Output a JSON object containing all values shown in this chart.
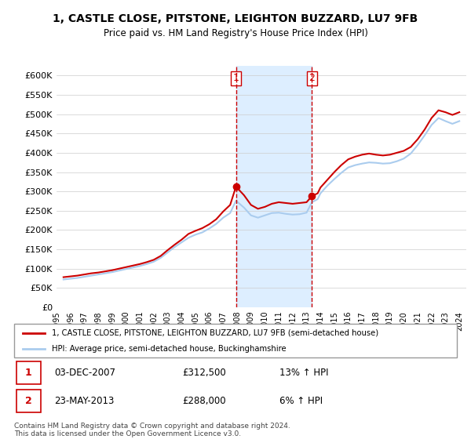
{
  "title": "1, CASTLE CLOSE, PITSTONE, LEIGHTON BUZZARD, LU7 9FB",
  "subtitle": "Price paid vs. HM Land Registry's House Price Index (HPI)",
  "legend_line1": "1, CASTLE CLOSE, PITSTONE, LEIGHTON BUZZARD, LU7 9FB (semi-detached house)",
  "legend_line2": "HPI: Average price, semi-detached house, Buckinghamshire",
  "annotation1_date": "03-DEC-2007",
  "annotation1_price": "£312,500",
  "annotation1_hpi": "13% ↑ HPI",
  "annotation2_date": "23-MAY-2013",
  "annotation2_price": "£288,000",
  "annotation2_hpi": "6% ↑ HPI",
  "footnote": "Contains HM Land Registry data © Crown copyright and database right 2024.\nThis data is licensed under the Open Government Licence v3.0.",
  "property_color": "#cc0000",
  "hpi_color": "#aaccee",
  "vline_color": "#cc0000",
  "highlight_color": "#ddeeff",
  "ylim": [
    0,
    625000
  ],
  "yticks": [
    0,
    50000,
    100000,
    150000,
    200000,
    250000,
    300000,
    350000,
    400000,
    450000,
    500000,
    550000,
    600000
  ],
  "marker1_x": 2007.92,
  "marker1_y": 312500,
  "marker2_x": 2013.39,
  "marker2_y": 288000,
  "vline1_x": 2007.92,
  "vline2_x": 2013.39,
  "highlight_x1": 2007.92,
  "highlight_x2": 2013.39,
  "property_data": [
    [
      1995.5,
      78000
    ],
    [
      1996.0,
      80000
    ],
    [
      1996.5,
      82000
    ],
    [
      1997.0,
      85000
    ],
    [
      1997.5,
      88000
    ],
    [
      1998.0,
      90000
    ],
    [
      1998.5,
      93000
    ],
    [
      1999.0,
      96000
    ],
    [
      1999.5,
      100000
    ],
    [
      2000.0,
      104000
    ],
    [
      2000.5,
      108000
    ],
    [
      2001.0,
      112000
    ],
    [
      2001.5,
      117000
    ],
    [
      2002.0,
      123000
    ],
    [
      2002.5,
      133000
    ],
    [
      2003.0,
      148000
    ],
    [
      2003.5,
      162000
    ],
    [
      2004.0,
      175000
    ],
    [
      2004.5,
      190000
    ],
    [
      2005.0,
      198000
    ],
    [
      2005.5,
      205000
    ],
    [
      2006.0,
      215000
    ],
    [
      2006.5,
      228000
    ],
    [
      2007.0,
      248000
    ],
    [
      2007.5,
      265000
    ],
    [
      2007.92,
      312500
    ],
    [
      2008.5,
      290000
    ],
    [
      2009.0,
      265000
    ],
    [
      2009.5,
      255000
    ],
    [
      2010.0,
      260000
    ],
    [
      2010.5,
      268000
    ],
    [
      2011.0,
      272000
    ],
    [
      2011.5,
      270000
    ],
    [
      2012.0,
      268000
    ],
    [
      2012.5,
      270000
    ],
    [
      2013.0,
      272000
    ],
    [
      2013.39,
      288000
    ],
    [
      2013.8,
      295000
    ],
    [
      2014.0,
      310000
    ],
    [
      2014.5,
      330000
    ],
    [
      2015.0,
      350000
    ],
    [
      2015.5,
      368000
    ],
    [
      2016.0,
      383000
    ],
    [
      2016.5,
      390000
    ],
    [
      2017.0,
      395000
    ],
    [
      2017.5,
      398000
    ],
    [
      2018.0,
      395000
    ],
    [
      2018.5,
      393000
    ],
    [
      2019.0,
      395000
    ],
    [
      2019.5,
      400000
    ],
    [
      2020.0,
      405000
    ],
    [
      2020.5,
      415000
    ],
    [
      2021.0,
      435000
    ],
    [
      2021.5,
      460000
    ],
    [
      2022.0,
      490000
    ],
    [
      2022.5,
      510000
    ],
    [
      2023.0,
      505000
    ],
    [
      2023.5,
      498000
    ],
    [
      2024.0,
      505000
    ]
  ],
  "hpi_data": [
    [
      1995.5,
      72000
    ],
    [
      1996.0,
      74000
    ],
    [
      1996.5,
      76000
    ],
    [
      1997.0,
      79000
    ],
    [
      1997.5,
      82000
    ],
    [
      1998.0,
      85000
    ],
    [
      1998.5,
      88000
    ],
    [
      1999.0,
      91000
    ],
    [
      1999.5,
      95000
    ],
    [
      2000.0,
      99000
    ],
    [
      2000.5,
      103000
    ],
    [
      2001.0,
      107000
    ],
    [
      2001.5,
      112000
    ],
    [
      2002.0,
      118000
    ],
    [
      2002.5,
      128000
    ],
    [
      2003.0,
      142000
    ],
    [
      2003.5,
      156000
    ],
    [
      2004.0,
      168000
    ],
    [
      2004.5,
      180000
    ],
    [
      2005.0,
      188000
    ],
    [
      2005.5,
      194000
    ],
    [
      2006.0,
      204000
    ],
    [
      2006.5,
      216000
    ],
    [
      2007.0,
      232000
    ],
    [
      2007.5,
      244000
    ],
    [
      2007.92,
      276000
    ],
    [
      2008.5,
      258000
    ],
    [
      2009.0,
      238000
    ],
    [
      2009.5,
      232000
    ],
    [
      2010.0,
      238000
    ],
    [
      2010.5,
      244000
    ],
    [
      2011.0,
      245000
    ],
    [
      2011.5,
      242000
    ],
    [
      2012.0,
      240000
    ],
    [
      2012.5,
      241000
    ],
    [
      2013.0,
      245000
    ],
    [
      2013.39,
      272000
    ],
    [
      2013.8,
      280000
    ],
    [
      2014.0,
      295000
    ],
    [
      2014.5,
      315000
    ],
    [
      2015.0,
      332000
    ],
    [
      2015.5,
      348000
    ],
    [
      2016.0,
      362000
    ],
    [
      2016.5,
      368000
    ],
    [
      2017.0,
      372000
    ],
    [
      2017.5,
      375000
    ],
    [
      2018.0,
      374000
    ],
    [
      2018.5,
      372000
    ],
    [
      2019.0,
      373000
    ],
    [
      2019.5,
      378000
    ],
    [
      2020.0,
      385000
    ],
    [
      2020.5,
      398000
    ],
    [
      2021.0,
      420000
    ],
    [
      2021.5,
      445000
    ],
    [
      2022.0,
      472000
    ],
    [
      2022.5,
      490000
    ],
    [
      2023.0,
      482000
    ],
    [
      2023.5,
      475000
    ],
    [
      2024.0,
      482000
    ]
  ],
  "xmin": 1995.0,
  "xmax": 2024.5,
  "xtick_years": [
    1995,
    1996,
    1997,
    1998,
    1999,
    2000,
    2001,
    2002,
    2003,
    2004,
    2005,
    2006,
    2007,
    2008,
    2009,
    2010,
    2011,
    2012,
    2013,
    2014,
    2015,
    2016,
    2017,
    2018,
    2019,
    2020,
    2021,
    2022,
    2023,
    2024
  ]
}
